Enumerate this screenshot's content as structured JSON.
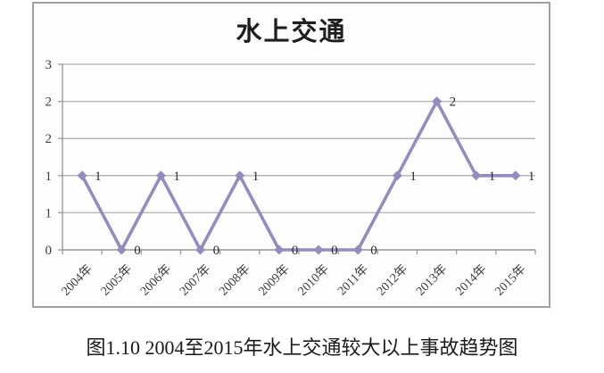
{
  "chart_data": {
    "type": "line",
    "title": "水上交通",
    "categories": [
      "2004年",
      "2005年",
      "2006年",
      "2007年",
      "2008年",
      "2009年",
      "2010年",
      "2011年",
      "2012年",
      "2013年",
      "2014年",
      "2015年"
    ],
    "values": [
      1,
      0,
      1,
      0,
      1,
      0,
      0,
      0,
      1,
      2,
      1,
      1
    ],
    "data_labels": [
      "1",
      "0",
      "1",
      "0",
      "1",
      "0",
      "0",
      "0",
      "1",
      "2",
      "1",
      "1"
    ],
    "xlabel": "",
    "ylabel": "",
    "ylim": [
      0,
      2.5
    ],
    "y_ticks": {
      "values": [
        0,
        0.5,
        1,
        1.5,
        2,
        2.5
      ],
      "labels": [
        "0",
        "1",
        "1",
        "2",
        "2",
        "3"
      ]
    },
    "grid": true,
    "legend": false,
    "marker": "diamond",
    "colors": {
      "line": "#948cba",
      "marker": "#948cba",
      "grid": "#b3b3b3",
      "axis": "#9a9a9a",
      "tick_label": "#3c3c3c",
      "data_label": "#2e2e2e"
    }
  },
  "caption": "图1.10 2004至2015年水上交通较大以上事故趋势图"
}
